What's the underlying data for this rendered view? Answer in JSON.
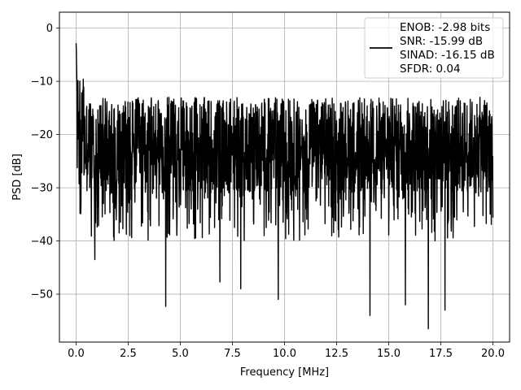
{
  "chart_data": {
    "type": "line",
    "xlabel": "Frequency [MHz]",
    "ylabel": "PSD [dB]",
    "xlim": [
      -0.8,
      20.8
    ],
    "ylim": [
      -59,
      3
    ],
    "xticks": [
      0.0,
      2.5,
      5.0,
      7.5,
      10.0,
      12.5,
      15.0,
      17.5,
      20.0
    ],
    "xtick_labels": [
      "0.0",
      "2.5",
      "5.0",
      "7.5",
      "10.0",
      "12.5",
      "15.0",
      "17.5",
      "20.0"
    ],
    "yticks": [
      0,
      -10,
      -20,
      -30,
      -40,
      -50
    ],
    "ytick_labels": [
      "0",
      "−10",
      "−20",
      "−30",
      "−40",
      "−50"
    ],
    "grid": true,
    "legend_position": "top-right",
    "legend_lines": [
      "ENOB: -2.98 bits",
      "SNR: -15.99 dB",
      "SINAD: -16.15 dB",
      "SFDR: 0.04"
    ],
    "series": [
      {
        "color": "#000000",
        "x_range": [
          0.0,
          20.0
        ],
        "noise_floor_db": -22,
        "noise_band_db": [
          -31,
          -13
        ],
        "minimum_db": -56.5,
        "peak": {
          "x": 0.0,
          "y": 0.0
        },
        "deep_nulls": [
          {
            "x": 0.9,
            "y": -43.5
          },
          {
            "x": 4.3,
            "y": -52.3
          },
          {
            "x": 6.9,
            "y": -47.7
          },
          {
            "x": 7.9,
            "y": -49.0
          },
          {
            "x": 9.7,
            "y": -51.0
          },
          {
            "x": 14.1,
            "y": -54.0
          },
          {
            "x": 15.8,
            "y": -52.0
          },
          {
            "x": 16.9,
            "y": -56.5
          },
          {
            "x": 17.7,
            "y": -53.0
          }
        ]
      }
    ]
  }
}
